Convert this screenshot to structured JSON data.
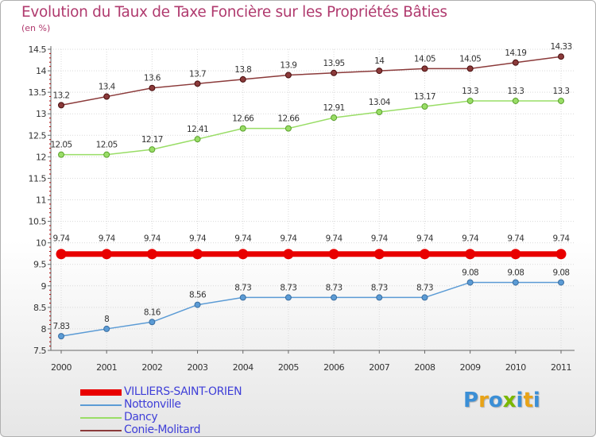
{
  "colors": {
    "title": "#b03a6e",
    "axis": "#666666",
    "grid": "#d9d9d9",
    "legend_text": "#3f3fd8"
  },
  "chart_data": {
    "type": "line",
    "title": "Evolution du Taux de Taxe Foncière sur les Propriétés Bâties",
    "subtitle": "(en %)",
    "xlabel": "",
    "ylabel": "(en %)",
    "x": [
      "2000",
      "2001",
      "2002",
      "2003",
      "2004",
      "2005",
      "2006",
      "2007",
      "2008",
      "2009",
      "2010",
      "2011"
    ],
    "ylim": [
      7.5,
      14.5
    ],
    "yticks": [
      "7.5",
      "8",
      "8.5",
      "9",
      "9.5",
      "10",
      "10.5",
      "11",
      "11.5",
      "12",
      "12.5",
      "13",
      "13.5",
      "14",
      "14.5"
    ],
    "series": [
      {
        "name": "VILLIERS-SAINT-ORIEN",
        "color": "#e80000",
        "marker_stroke": "#b00000",
        "highlight": true,
        "values": [
          9.74,
          9.74,
          9.74,
          9.74,
          9.74,
          9.74,
          9.74,
          9.74,
          9.74,
          9.74,
          9.74,
          9.74
        ],
        "labels": [
          "9.74",
          "9.74",
          "9.74",
          "9.74",
          "9.74",
          "9.74",
          "9.74",
          "9.74",
          "9.74",
          "9.74",
          "9.74",
          "9.74"
        ]
      },
      {
        "name": "Nottonville",
        "color": "#5b9bd5",
        "marker_stroke": "#3a6ea0",
        "highlight": false,
        "values": [
          7.83,
          8,
          8.16,
          8.56,
          8.73,
          8.73,
          8.73,
          8.73,
          8.73,
          9.08,
          9.08,
          9.08
        ],
        "labels": [
          "7.83",
          "8",
          "8.16",
          "8.56",
          "8.73",
          "8.73",
          "8.73",
          "8.73",
          "8.73",
          "9.08",
          "9.08",
          "9.08"
        ]
      },
      {
        "name": "Dancy",
        "color": "#99dd66",
        "marker_stroke": "#5aa02c",
        "highlight": false,
        "values": [
          12.05,
          12.05,
          12.17,
          12.41,
          12.66,
          12.66,
          12.91,
          13.04,
          13.17,
          13.3,
          13.3,
          13.3
        ],
        "labels": [
          "12.05",
          "12.05",
          "12.17",
          "12.41",
          "12.66",
          "12.66",
          "12.91",
          "13.04",
          "13.17",
          "13.3",
          "13.3",
          "13.3"
        ]
      },
      {
        "name": "Conie-Molitard",
        "color": "#8b3a3a",
        "marker_stroke": "#4a1010",
        "highlight": false,
        "values": [
          13.2,
          13.4,
          13.6,
          13.7,
          13.8,
          13.9,
          13.95,
          14,
          14.05,
          14.05,
          14.19,
          14.33
        ],
        "labels": [
          "13.2",
          "13.4",
          "13.6",
          "13.7",
          "13.8",
          "13.9",
          "13.95",
          "14",
          "14.05",
          "14.05",
          "14.19",
          "14.33"
        ]
      }
    ],
    "legend": "bottom-left"
  },
  "logo": {
    "letters": [
      "P",
      "r",
      "o",
      "x",
      "i",
      "t",
      "i"
    ],
    "colors": [
      "#3b8fd6",
      "#e8a317",
      "#3b8fd6",
      "#7ab800",
      "#3b8fd6",
      "#e8a317",
      "#3b8fd6"
    ]
  }
}
